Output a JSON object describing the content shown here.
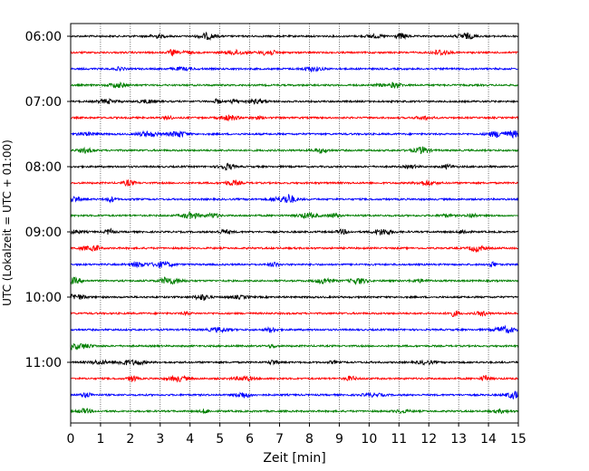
{
  "chart_data": {
    "type": "line",
    "title": "",
    "xlabel": "Zeit  [min]",
    "ylabel": "UTC (Lokalzeit = UTC + 01:00)",
    "xlim": [
      0,
      15
    ],
    "x_ticks": [
      0,
      1,
      2,
      3,
      4,
      5,
      6,
      7,
      8,
      9,
      10,
      11,
      12,
      13,
      14,
      15
    ],
    "x_tick_labels": [
      "0",
      "1",
      "2",
      "3",
      "4",
      "5",
      "6",
      "7",
      "8",
      "9",
      "10",
      "11",
      "12",
      "13",
      "14",
      "15"
    ],
    "y_tick_labels": [
      "06:00",
      "07:00",
      "08:00",
      "09:00",
      "10:00",
      "11:00"
    ],
    "grid": "vertical dotted lines at each minute",
    "trace_interval_minutes": 15,
    "start_time": "06:00",
    "trace_colors": [
      "#000000",
      "#ff0000",
      "#0000ff",
      "#007f00"
    ],
    "trace_count": 24
  }
}
